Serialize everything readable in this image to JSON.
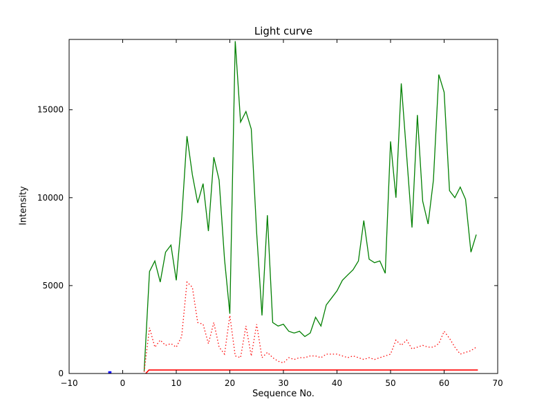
{
  "figure": {
    "background": "#ffffff",
    "frame_color": "#000000"
  },
  "chart_data": {
    "type": "line",
    "title": "Light curve",
    "xlabel": "Sequence No.",
    "ylabel": "Intensity",
    "xlim": [
      -10,
      70
    ],
    "ylim": [
      0,
      19000
    ],
    "grid": false,
    "legend": null,
    "xticks": [
      -10,
      0,
      10,
      20,
      30,
      40,
      50,
      60,
      70
    ],
    "xtick_labels": [
      "−10",
      "0",
      "10",
      "20",
      "30",
      "40",
      "50",
      "60",
      "70"
    ],
    "yticks": [
      0,
      5000,
      10000,
      15000
    ],
    "ytick_labels": [
      "0",
      "5000",
      "10000",
      "15000"
    ],
    "series": [
      {
        "name": "intensity-green",
        "color": "#007f00",
        "style": "solid",
        "width": 1.3,
        "x0": 4,
        "dx": 1,
        "values": [
          100,
          5800,
          6400,
          5200,
          6900,
          7300,
          5300,
          8800,
          13500,
          11300,
          9700,
          10800,
          8100,
          12300,
          11000,
          6500,
          3400,
          18900,
          14300,
          14900,
          13900,
          8000,
          3300,
          9000,
          2900,
          2700,
          2800,
          2400,
          2300,
          2400,
          2100,
          2300,
          3200,
          2700,
          3900,
          4300,
          4700,
          5300,
          5600,
          5900,
          6400,
          8700,
          6500,
          6300,
          6400,
          5700,
          13200,
          10000,
          16500,
          12400,
          8300,
          14700,
          9800,
          8500,
          11000,
          17000,
          16000,
          10400,
          10000,
          10600,
          9900,
          6900,
          7900
        ]
      },
      {
        "name": "intensity-red-dotted",
        "color": "#ff0000",
        "style": "dotted",
        "width": 1.3,
        "x0": 4,
        "dx": 1,
        "values": [
          100,
          2600,
          1500,
          1900,
          1600,
          1700,
          1500,
          2100,
          5200,
          4900,
          2900,
          2800,
          1700,
          2900,
          1500,
          1100,
          3300,
          1000,
          900,
          2700,
          1000,
          2800,
          900,
          1200,
          900,
          700,
          600,
          900,
          800,
          900,
          900,
          1000,
          1000,
          900,
          1100,
          1100,
          1100,
          1000,
          900,
          1000,
          900,
          800,
          900,
          800,
          900,
          1000,
          1100,
          1900,
          1600,
          1900,
          1400,
          1500,
          1600,
          1500,
          1500,
          1700,
          2400,
          2000,
          1500,
          1100,
          1200,
          1300,
          1500
        ]
      },
      {
        "name": "baseline-red-solid",
        "color": "#ff0000",
        "style": "solid",
        "width": 1.6,
        "x": [
          4.3,
          4.9,
          66.3
        ],
        "values": [
          0,
          200,
          200
        ]
      },
      {
        "name": "marker-blue",
        "color": "#0000ff",
        "style": "solid",
        "width": 3.5,
        "x": [
          -2.7,
          -2.1
        ],
        "values": [
          60,
          60
        ]
      }
    ]
  }
}
